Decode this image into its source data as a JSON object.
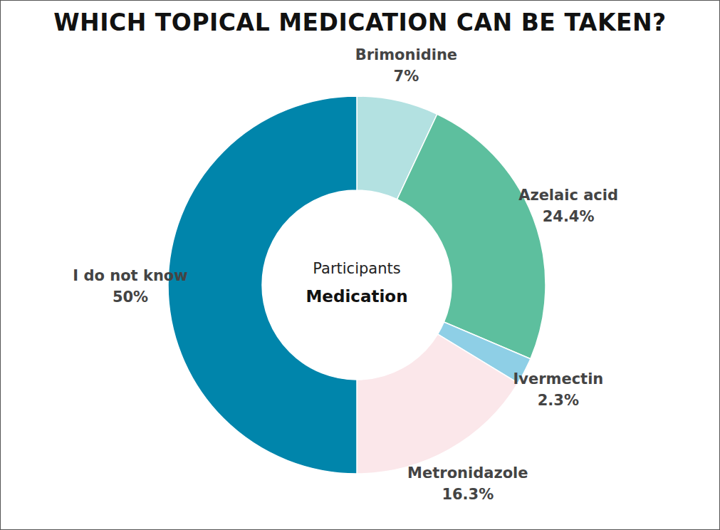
{
  "chart_data": {
    "type": "pie",
    "title": "WHICH TOPICAL MEDICATION CAN BE TAKEN?",
    "annotations": [
      "Participants",
      "Medication"
    ],
    "categories": [
      "Brimonidine",
      "Azelaic acid",
      "Ivermectin",
      "Metronidazole",
      "I do not know"
    ],
    "values": [
      7,
      24.4,
      2.3,
      16.3,
      50
    ],
    "value_labels": [
      "7%",
      "24.4%",
      "2.3%",
      "16.3%",
      "50%"
    ],
    "colors": [
      "#b3e1e1",
      "#5dbf9e",
      "#8ecfe6",
      "#fbe7ea",
      "#0085ab"
    ],
    "data_labels": true
  }
}
